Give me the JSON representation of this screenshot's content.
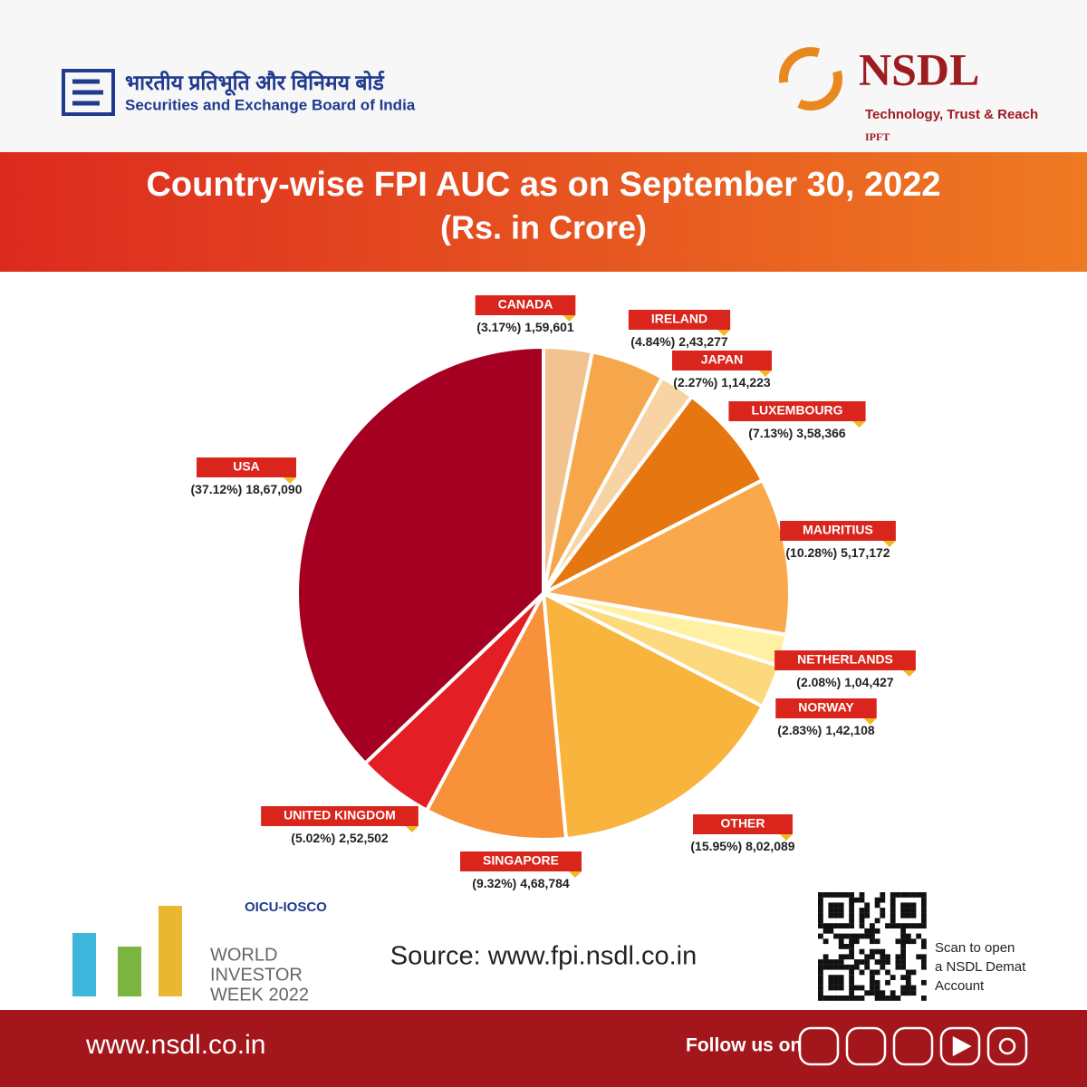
{
  "header": {
    "sebi_hindi": "भारतीय प्रतिभूति और विनिमय बोर्ड",
    "sebi_english": "Securities and Exchange Board of India",
    "nsdl": "NSDL",
    "tagline": "Technology, Trust & Reach",
    "ipft": "IPFT"
  },
  "chart_data": {
    "type": "pie",
    "title": "Country-wise FPI AUC as on September 30, 2022",
    "subtitle": "(Rs. in Crore)",
    "categories": [
      "CANADA",
      "IRELAND",
      "JAPAN",
      "LUXEMBOURG",
      "MAURITIUS",
      "NETHERLANDS",
      "NORWAY",
      "OTHER",
      "SINGAPORE",
      "UNITED KINGDOM",
      "USA"
    ],
    "values": [
      159601,
      243277,
      114223,
      358366,
      517172,
      104427,
      142108,
      802089,
      468784,
      252502,
      1867090
    ],
    "value_labels": [
      "1,59,601",
      "2,43,277",
      "1,14,223",
      "3,58,366",
      "5,17,172",
      "1,04,427",
      "1,42,108",
      "8,02,089",
      "4,68,784",
      "2,52,502",
      "18,67,090"
    ],
    "percent_labels": [
      "(3.17%)",
      "(4.84%)",
      "(2.27%)",
      "(7.13%)",
      "(10.28%)",
      "(2.08%)",
      "(2.83%)",
      "(15.95%)",
      "(9.32%)",
      "(5.02%)",
      "(37.12%)"
    ],
    "colors": [
      "#f3c291",
      "#f7a74b",
      "#f8d3a3",
      "#e6760f",
      "#f9a94b",
      "#fff0a3",
      "#fbd97c",
      "#f9b43d",
      "#f7923b",
      "#e31e25",
      "#a50022"
    ]
  },
  "source": "Source: www.fpi.nsdl.co.in",
  "event": {
    "org": "OICU-IOSCO",
    "line1": "WORLD",
    "line2": "INVESTOR",
    "line3": "WEEK 2022"
  },
  "qr_caption": [
    "Scan to open",
    "a NSDL Demat",
    "Account"
  ],
  "footer": {
    "website": "www.nsdl.co.in",
    "follow": "Follow us on"
  }
}
